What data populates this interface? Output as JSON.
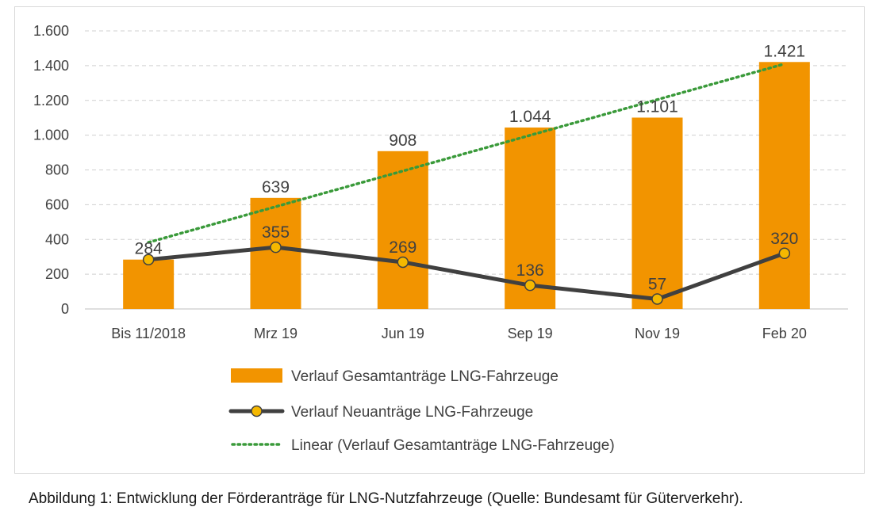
{
  "chart_data": {
    "type": "bar",
    "categories": [
      "Bis 11/2018",
      "Mrz 19",
      "Jun 19",
      "Sep 19",
      "Nov 19",
      "Feb 20"
    ],
    "series": [
      {
        "name": "Verlauf Gesamtanträge LNG-Fahrzeuge",
        "kind": "bar",
        "color": "#f29400",
        "values": [
          284,
          639,
          908,
          1044,
          1101,
          1421
        ],
        "value_labels": [
          "284",
          "639",
          "908",
          "1.044",
          "1.101",
          "1.421"
        ]
      },
      {
        "name": "Verlauf Neuanträge LNG-Fahrzeuge",
        "kind": "line-marker",
        "color": "#404040",
        "marker_color": "#f5b800",
        "values": [
          284,
          355,
          269,
          136,
          57,
          320
        ],
        "value_labels": [
          "",
          "355",
          "269",
          "136",
          "57",
          "320"
        ]
      },
      {
        "name": "Linear (Verlauf Gesamtanträge LNG-Fahrzeuge)",
        "kind": "trendline-dotted",
        "color": "#3a9a3a",
        "values": [
          383,
          588,
          794,
          999,
          1204,
          1410
        ]
      }
    ],
    "ylim": [
      0,
      1600
    ],
    "yticks": [
      0,
      200,
      400,
      600,
      800,
      1000,
      1200,
      1400,
      1600
    ],
    "ytick_labels": [
      "0",
      "200",
      "400",
      "600",
      "800",
      "1.000",
      "1.200",
      "1.400",
      "1.600"
    ],
    "grid": "horizontal-dashed",
    "legend_position": "bottom"
  },
  "caption": "Abbildung 1: Entwicklung der Förderanträge für LNG-Nutzfahrzeuge (Quelle: Bundesamt für Güterverkehr)."
}
